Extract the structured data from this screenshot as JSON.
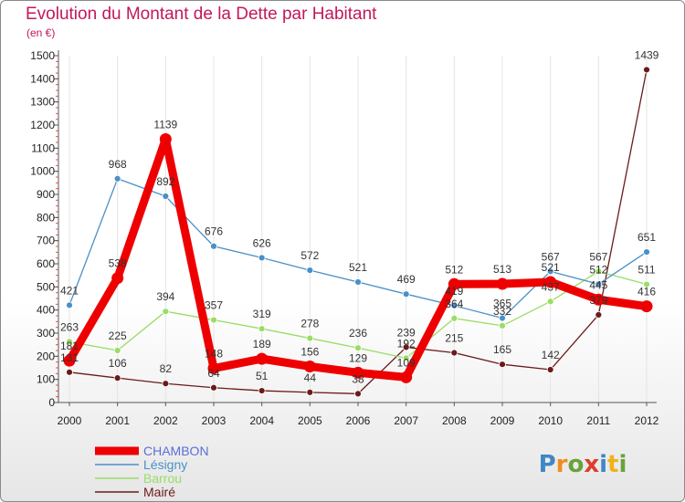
{
  "title": "Evolution du Montant de la Dette par Habitant",
  "subtitle": "(en €)",
  "logo_text": "Proxiti",
  "chart_data": {
    "type": "line",
    "title": "Evolution du Montant de la Dette par Habitant",
    "ylabel": "(en €)",
    "x": [
      "2000",
      "2001",
      "2002",
      "2003",
      "2004",
      "2005",
      "2006",
      "2007",
      "2008",
      "2009",
      "2010",
      "2011",
      "2012"
    ],
    "ylim": [
      0,
      1500
    ],
    "yticks": [
      0,
      100,
      200,
      300,
      400,
      500,
      600,
      700,
      800,
      900,
      1000,
      1100,
      1200,
      1300,
      1400,
      1500
    ],
    "grid": true,
    "legend_position": "bottom-left",
    "series": [
      {
        "name": "CHAMBON",
        "color": "#ee0000",
        "values": [
          181,
          538,
          1139,
          148,
          189,
          156,
          129,
          109,
          512,
          513,
          521,
          445,
          416
        ]
      },
      {
        "name": "Lésigny",
        "color": "#4a90c8",
        "values": [
          421,
          968,
          892,
          676,
          626,
          572,
          521,
          469,
          419,
          365,
          567,
          512,
          651
        ]
      },
      {
        "name": "Barrou",
        "color": "#99dd66",
        "values": [
          263,
          225,
          394,
          357,
          319,
          278,
          236,
          192,
          364,
          332,
          437,
          567,
          511
        ]
      },
      {
        "name": "Mairé",
        "color": "#6b1a1a",
        "values": [
          131,
          106,
          82,
          64,
          51,
          44,
          38,
          239,
          215,
          165,
          142,
          379,
          1439
        ]
      }
    ]
  }
}
